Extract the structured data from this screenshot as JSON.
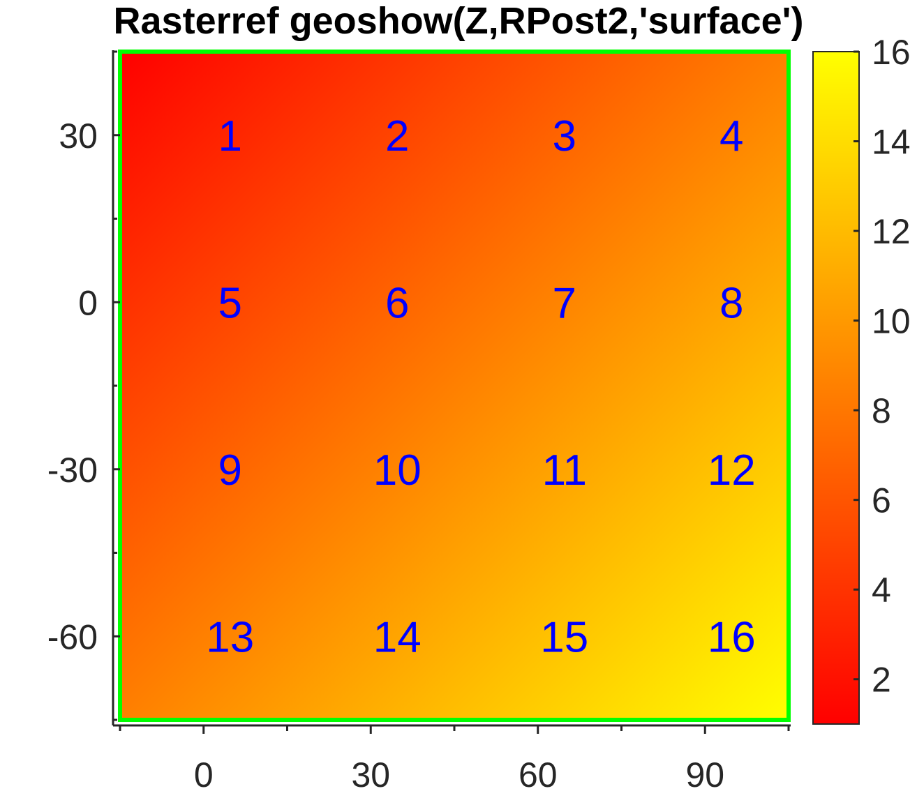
{
  "chart_data": {
    "type": "heatmap",
    "title": "Rasterref geoshow(Z,RPost2,'surface')",
    "x_ticks": [
      "0",
      "30",
      "60",
      "90"
    ],
    "x_tick_values": [
      0,
      30,
      60,
      90
    ],
    "y_ticks": [
      "30",
      "0",
      "-30",
      "-60"
    ],
    "y_tick_values": [
      30,
      0,
      -30,
      -60
    ],
    "xlim": [
      -15,
      105
    ],
    "ylim": [
      -75,
      45
    ],
    "grid": false,
    "colormap": "autumn",
    "colormap_colors": [
      "#ff0000",
      "#ffff00"
    ],
    "frame_color": "#00ff00",
    "label_color": "#0000ff",
    "cells": [
      {
        "x": 0,
        "y": 30,
        "label": "1"
      },
      {
        "x": 30,
        "y": 30,
        "label": "2"
      },
      {
        "x": 60,
        "y": 30,
        "label": "3"
      },
      {
        "x": 90,
        "y": 30,
        "label": "4"
      },
      {
        "x": 0,
        "y": 0,
        "label": "5"
      },
      {
        "x": 30,
        "y": 0,
        "label": "6"
      },
      {
        "x": 60,
        "y": 0,
        "label": "7"
      },
      {
        "x": 90,
        "y": 0,
        "label": "8"
      },
      {
        "x": 0,
        "y": -30,
        "label": "9"
      },
      {
        "x": 30,
        "y": -30,
        "label": "10"
      },
      {
        "x": 60,
        "y": -30,
        "label": "11"
      },
      {
        "x": 90,
        "y": -30,
        "label": "12"
      },
      {
        "x": 0,
        "y": -60,
        "label": "13"
      },
      {
        "x": 30,
        "y": -60,
        "label": "14"
      },
      {
        "x": 60,
        "y": -60,
        "label": "15"
      },
      {
        "x": 90,
        "y": -60,
        "label": "16"
      }
    ],
    "colorbar": {
      "ticks": [
        "2",
        "4",
        "6",
        "8",
        "10",
        "12",
        "14",
        "16"
      ],
      "tick_values": [
        2,
        4,
        6,
        8,
        10,
        12,
        14,
        16
      ],
      "clim": [
        1,
        16
      ]
    }
  }
}
